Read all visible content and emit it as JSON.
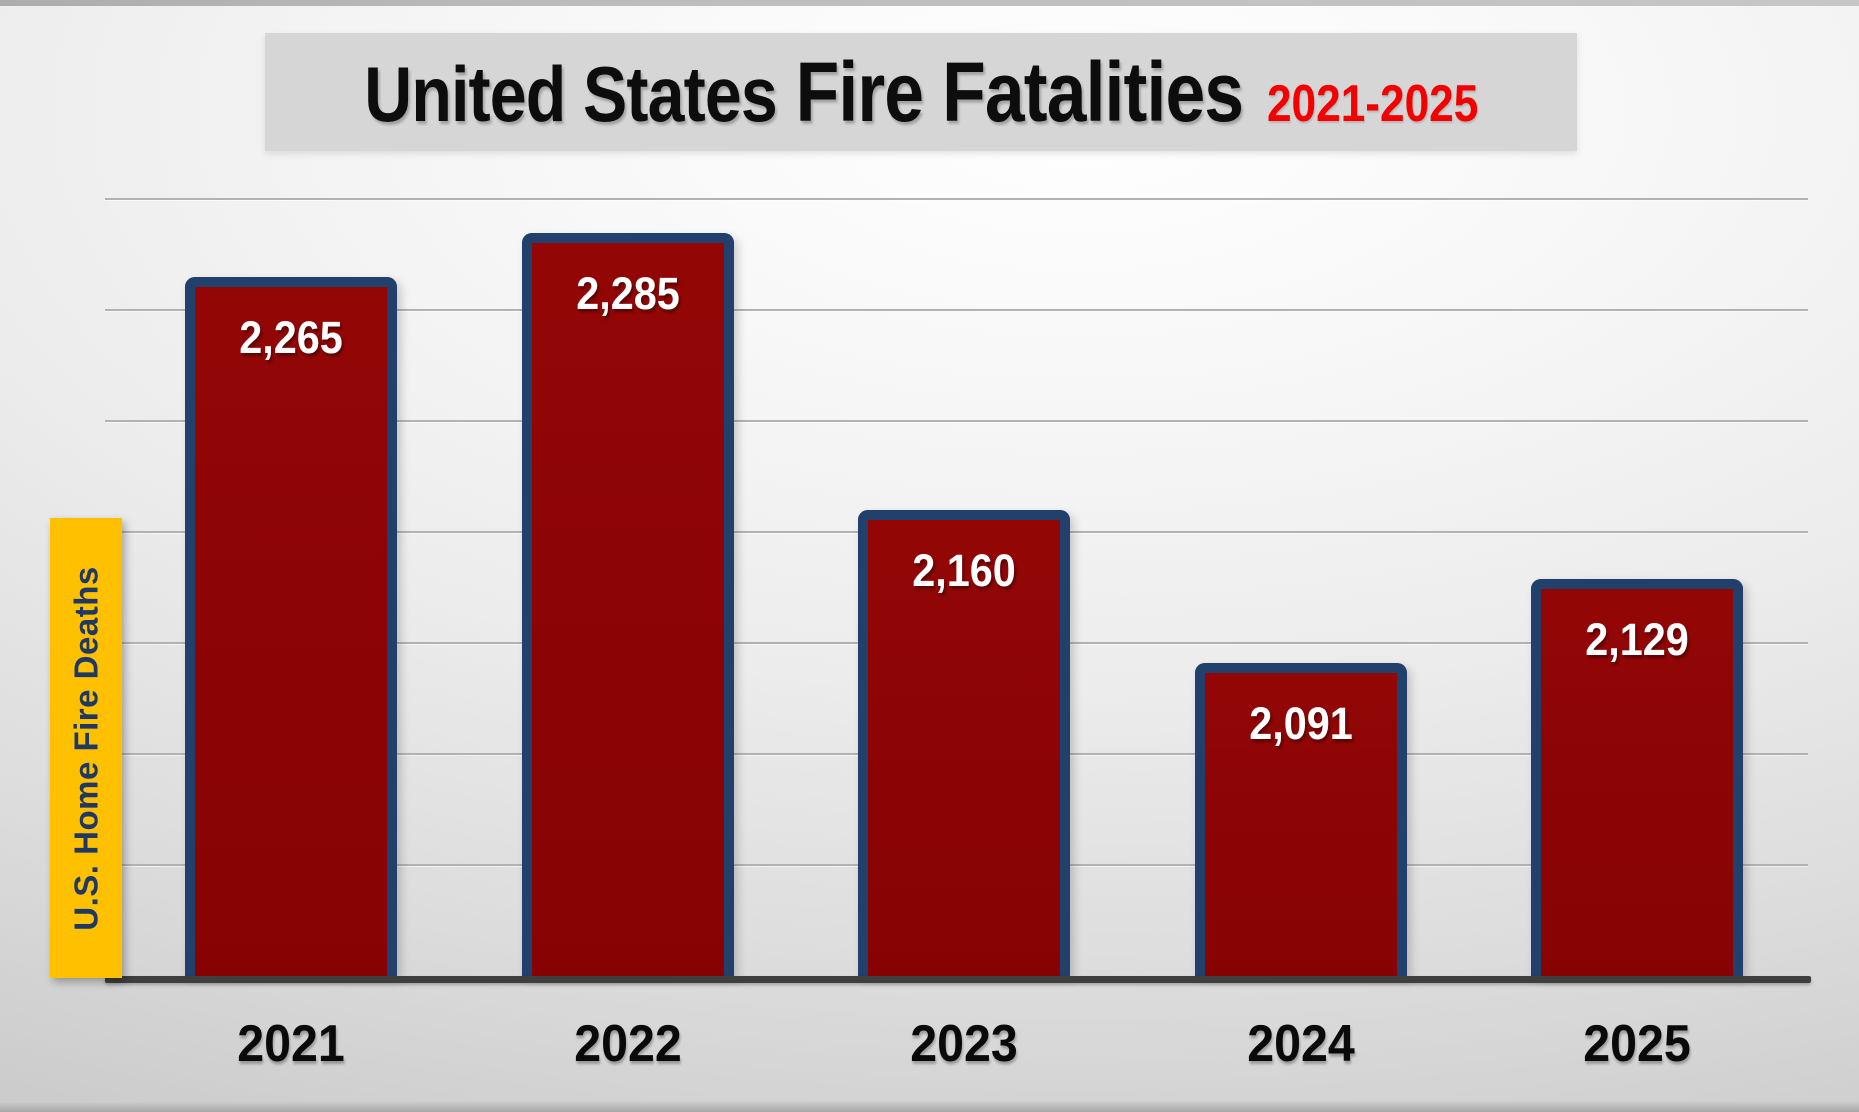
{
  "title": {
    "part1": "United States",
    "part2": "Fire Fatalities",
    "period": "2021-2025"
  },
  "chart_data": {
    "type": "bar",
    "title": "United States Fire Fatalities 2021-2025",
    "categories": [
      "2021",
      "2022",
      "2023",
      "2024",
      "2025"
    ],
    "values": [
      2265,
      2285,
      2160,
      2091,
      2129
    ],
    "value_labels": [
      "2,265",
      "2,285",
      "2,160",
      "2,091",
      "2,129"
    ],
    "xlabel": "",
    "ylabel": "U.S. Home Fire Deaths",
    "ylim": [
      1950,
      2320
    ],
    "gridline_step": 50,
    "gridline_values": [
      2000,
      2050,
      2100,
      2150,
      2200,
      2250,
      2300
    ],
    "grid": true,
    "legend": false,
    "y_tick_labels_shown": false
  },
  "colors": {
    "bar_fill": "#8B0404",
    "bar_border": "#21406B",
    "title_text": "#0D0D0D",
    "title_accent": "#F40000",
    "banner_bg": "#D6D6D6",
    "ylabel_bg": "#FFC000",
    "ylabel_text": "#1F3864",
    "value_label_text": "#FFFFFF",
    "gridline": "#B2B2B2",
    "axis_line": "#3F3F3F",
    "background": "#E9E9E9"
  }
}
